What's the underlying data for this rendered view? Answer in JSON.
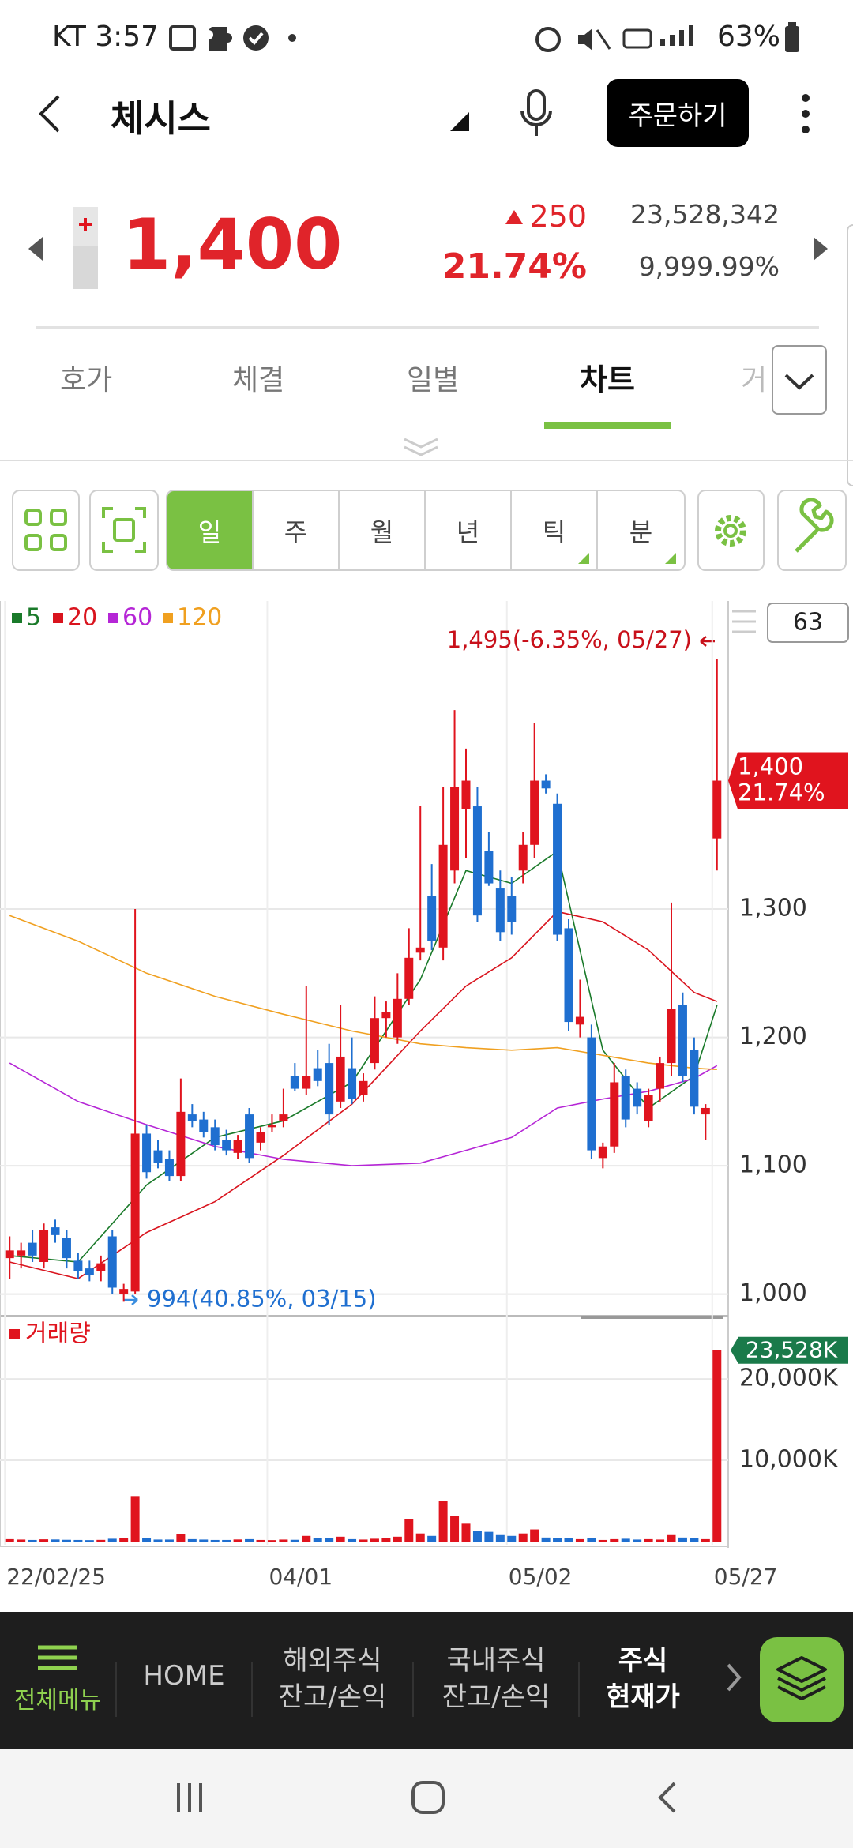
{
  "status_bar": {
    "carrier_time": "KT 3:57",
    "battery": "63%"
  },
  "header": {
    "title": "체시스",
    "order_button": "주문하기"
  },
  "quote": {
    "price": "1,400",
    "change": "250",
    "change_rate": "21.74%",
    "volume": "23,528,342",
    "turnover_rate": "9,999.99%"
  },
  "tabs": [
    "호가",
    "체결",
    "일별",
    "차트",
    "거"
  ],
  "periods": [
    "일",
    "주",
    "월",
    "년",
    "틱",
    "분"
  ],
  "chart_data": {
    "type": "candlestick",
    "visible_count": 63,
    "up_color": "#e0141e",
    "down_color": "#1f6fd0",
    "categories": [
      "22/02/25",
      null,
      null,
      null,
      null,
      null,
      null,
      null,
      null,
      null,
      null,
      null,
      null,
      null,
      null,
      null,
      null,
      null,
      null,
      null,
      null,
      null,
      null,
      "04/01",
      null,
      null,
      null,
      null,
      null,
      null,
      null,
      null,
      null,
      null,
      null,
      null,
      null,
      null,
      null,
      null,
      null,
      null,
      null,
      null,
      "05/02",
      null,
      null,
      null,
      null,
      null,
      null,
      null,
      null,
      null,
      null,
      null,
      null,
      null,
      null,
      null,
      null,
      null,
      "05/27"
    ],
    "open": [
      1028,
      1030,
      1040,
      1025,
      1052,
      1044,
      1026,
      1020,
      1018,
      1045,
      1000,
      1002,
      1125,
      1112,
      1105,
      1092,
      1140,
      1136,
      1130,
      1120,
      1110,
      1140,
      1118,
      1130,
      1135,
      1170,
      1160,
      1176,
      1180,
      1150,
      1176,
      1155,
      1180,
      1215,
      1200,
      1230,
      1266,
      1310,
      1270,
      1330,
      1378,
      1380,
      1345,
      1316,
      1310,
      1330,
      1350,
      1400,
      1382,
      1285,
      1210,
      1200,
      1106,
      1115,
      1170,
      1160,
      1135,
      1160,
      1180,
      1225,
      1190,
      1140,
      1355
    ],
    "high": [
      1045,
      1040,
      1050,
      1055,
      1058,
      1050,
      1032,
      1026,
      1030,
      1050,
      1008,
      1300,
      1132,
      1120,
      1112,
      1168,
      1148,
      1142,
      1136,
      1128,
      1124,
      1145,
      1130,
      1140,
      1160,
      1180,
      1240,
      1190,
      1195,
      1225,
      1200,
      1172,
      1232,
      1228,
      1250,
      1285,
      1380,
      1335,
      1395,
      1455,
      1425,
      1395,
      1360,
      1330,
      1325,
      1360,
      1445,
      1405,
      1390,
      1292,
      1245,
      1210,
      1118,
      1180,
      1175,
      1165,
      1160,
      1185,
      1305,
      1235,
      1200,
      1148,
      1495
    ],
    "low": [
      1012,
      1020,
      1025,
      1020,
      1040,
      1020,
      1012,
      1010,
      1010,
      1000,
      994,
      1000,
      1090,
      1098,
      1088,
      1088,
      1130,
      1122,
      1112,
      1108,
      1105,
      1102,
      1112,
      1126,
      1130,
      1158,
      1155,
      1162,
      1132,
      1145,
      1148,
      1150,
      1175,
      1200,
      1195,
      1225,
      1260,
      1268,
      1260,
      1320,
      1340,
      1290,
      1318,
      1275,
      1280,
      1320,
      1340,
      1390,
      1275,
      1205,
      1200,
      1105,
      1098,
      1110,
      1130,
      1140,
      1130,
      1150,
      1170,
      1165,
      1140,
      1120,
      1330
    ],
    "close": [
      1034,
      1034,
      1030,
      1050,
      1046,
      1028,
      1018,
      1015,
      1024,
      1005,
      1004,
      1125,
      1095,
      1102,
      1092,
      1142,
      1135,
      1126,
      1116,
      1112,
      1120,
      1106,
      1126,
      1132,
      1140,
      1160,
      1170,
      1166,
      1140,
      1185,
      1152,
      1166,
      1215,
      1220,
      1230,
      1262,
      1270,
      1275,
      1350,
      1395,
      1400,
      1295,
      1320,
      1282,
      1290,
      1350,
      1400,
      1394,
      1280,
      1212,
      1216,
      1112,
      1115,
      1165,
      1136,
      1146,
      1155,
      1180,
      1222,
      1170,
      1146,
      1145,
      1400
    ],
    "ylim": [
      985,
      1540
    ],
    "yticks": [
      {
        "value": 1000,
        "label": "1,000"
      },
      {
        "value": 1100,
        "label": "1,100"
      },
      {
        "value": 1200,
        "label": "1,200"
      },
      {
        "value": 1300,
        "label": "1,300"
      }
    ],
    "series": [
      {
        "name": "5",
        "color": "#1a7a2a",
        "x": [
          0,
          6,
          12,
          18,
          24,
          30,
          36,
          40,
          44,
          48,
          52,
          56,
          60,
          62
        ],
        "values": [
          1030,
          1025,
          1085,
          1122,
          1135,
          1165,
          1245,
          1330,
          1320,
          1345,
          1190,
          1145,
          1170,
          1225
        ]
      },
      {
        "name": "20",
        "color": "#d9141e",
        "x": [
          0,
          6,
          12,
          18,
          24,
          30,
          36,
          40,
          44,
          48,
          52,
          56,
          60,
          62
        ],
        "values": [
          1025,
          1012,
          1048,
          1072,
          1108,
          1148,
          1205,
          1240,
          1262,
          1298,
          1290,
          1268,
          1235,
          1228
        ]
      },
      {
        "name": "60",
        "color": "#b526d6",
        "x": [
          0,
          6,
          12,
          18,
          24,
          30,
          36,
          40,
          44,
          48,
          52,
          56,
          60,
          62
        ],
        "values": [
          1180,
          1150,
          1132,
          1115,
          1105,
          1100,
          1102,
          1112,
          1122,
          1145,
          1152,
          1158,
          1168,
          1178
        ]
      },
      {
        "name": "120",
        "color": "#f0a020",
        "x": [
          0,
          6,
          12,
          18,
          24,
          30,
          36,
          40,
          44,
          48,
          52,
          56,
          60,
          62
        ],
        "values": [
          1295,
          1275,
          1250,
          1232,
          1218,
          1205,
          1195,
          1192,
          1190,
          1192,
          1186,
          1180,
          1176,
          1175
        ]
      }
    ],
    "last_price": {
      "value": 1400,
      "label": "1,400",
      "rate": "21.74%",
      "color": "#e0141e"
    },
    "annotations": [
      {
        "text": "1,495(-6.35%, 05/27)",
        "value": 1495,
        "index": 62,
        "color": "#c8101a"
      },
      {
        "text": "994(40.85%, 03/15)",
        "value": 994,
        "index": 10,
        "color": "#1f6fd0"
      }
    ],
    "volume": {
      "label": "거래량",
      "color": "#e0141e",
      "values": [
        300,
        250,
        200,
        280,
        260,
        220,
        200,
        180,
        210,
        350,
        400,
        5600,
        400,
        250,
        250,
        900,
        300,
        250,
        200,
        200,
        260,
        300,
        200,
        180,
        250,
        220,
        700,
        400,
        450,
        600,
        300,
        250,
        350,
        400,
        600,
        2800,
        1000,
        700,
        5000,
        3200,
        2200,
        1300,
        1200,
        800,
        700,
        1000,
        1500,
        500,
        450,
        400,
        300,
        400,
        200,
        300,
        350,
        250,
        300,
        250,
        800,
        500,
        400,
        300,
        23528
      ],
      "ylim": [
        0,
        27000
      ],
      "yticks": [
        {
          "value": 10000,
          "label": "10,000K"
        },
        {
          "value": 20000,
          "label": "20,000K"
        }
      ],
      "last_label": "23,528K",
      "last_color": "#1a7a4a"
    }
  },
  "bottom_nav": [
    {
      "lines": [
        "전체메뉴"
      ]
    },
    {
      "lines": [
        "HOME"
      ]
    },
    {
      "lines": [
        "해외주식",
        "잔고/손익"
      ]
    },
    {
      "lines": [
        "국내주식",
        "잔고/손익"
      ]
    },
    {
      "lines": [
        "주식",
        "현재가"
      ]
    }
  ]
}
